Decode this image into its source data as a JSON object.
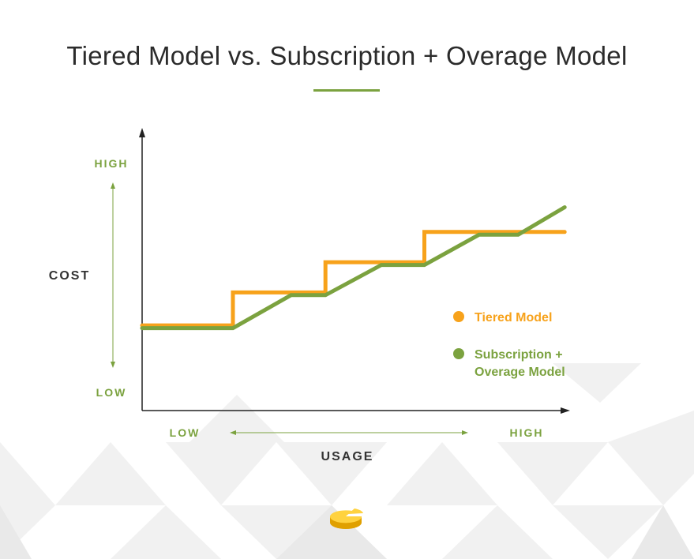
{
  "title": "Tiered Model vs. Subscription + Overage Model",
  "colors": {
    "accent_green": "#7ba23f",
    "tiered": "#f7a21b",
    "subscription": "#7ba23f",
    "axis": "#222222",
    "label_dark": "#333333"
  },
  "y_axis": {
    "label": "COST",
    "high": "HIGH",
    "low": "LOW"
  },
  "x_axis": {
    "label": "USAGE",
    "high": "HIGH",
    "low": "LOW"
  },
  "legend": {
    "tiered": "Tiered Model",
    "subscription_line1": "Subscription +",
    "subscription_line2": "Overage Model"
  },
  "logo_icon": "pie-logo-icon",
  "chart_data": {
    "type": "line",
    "title": "Tiered Model vs. Subscription + Overage Model",
    "xlabel": "USAGE",
    "ylabel": "COST",
    "xlim": [
      0,
      100
    ],
    "ylim": [
      0,
      100
    ],
    "grid": false,
    "legend_position": "right",
    "series": [
      {
        "name": "Tiered Model",
        "color": "#f7a21b",
        "x": [
          0,
          21.1,
          21.1,
          42.6,
          42.6,
          65.6,
          65.6,
          98.2
        ],
        "y": [
          31,
          31,
          43,
          43,
          54,
          54,
          65,
          65
        ]
      },
      {
        "name": "Subscription + Overage Model",
        "color": "#7ba23f",
        "x": [
          0,
          21.1,
          34.6,
          42.6,
          55.6,
          65.6,
          78.3,
          87.4,
          98.2
        ],
        "y": [
          30,
          30,
          42,
          42,
          53,
          53,
          64,
          64,
          74
        ]
      }
    ]
  }
}
